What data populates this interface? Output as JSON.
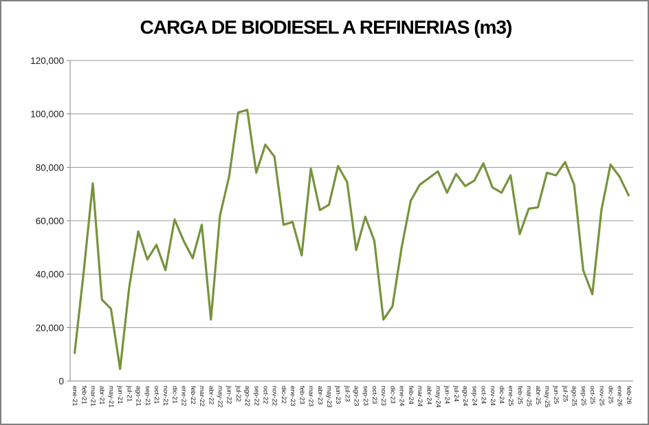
{
  "title": "CARGA DE BIODIESEL A REFINERIAS (m3)",
  "colors": {
    "series_line": "#77933C",
    "gridline": "#969696",
    "axis": "#808080",
    "chart_border": "#7F7F7F",
    "title_text": "#000000",
    "tick_label_text": "#1a1a1a",
    "background": "#FFFFFF"
  },
  "y_axis": {
    "tick_labels": [
      "120,000",
      "100,000",
      "80,000",
      "60,000",
      "40,000",
      "20,000",
      "0"
    ],
    "tick_values": [
      120000,
      100000,
      80000,
      60000,
      40000,
      20000,
      0
    ]
  },
  "chart_data": {
    "type": "line",
    "title": "CARGA DE BIODIESEL A REFINERIAS (m3)",
    "xlabel": "",
    "ylabel": "",
    "ylim": [
      0,
      120000
    ],
    "y_gridline_step": 20000,
    "grid": "horizontal",
    "legend": "none",
    "x_label_rotation_deg": 90,
    "categories": [
      "ene-21",
      "feb-21",
      "mar-21",
      "abr-21",
      "may-21",
      "jun-21",
      "jul-21",
      "ago-21",
      "sep-21",
      "oct-21",
      "nov-21",
      "dic-21",
      "ene-22",
      "feb-22",
      "mar-22",
      "abr-22",
      "may-22",
      "jun-22",
      "jul-22",
      "ago-22",
      "sep-22",
      "oct-22",
      "nov-22",
      "dic-22",
      "ene-23",
      "feb-23",
      "mar-23",
      "abr-23",
      "may-23",
      "jun-23",
      "jul-23",
      "ago-23",
      "sep-23",
      "oct-23",
      "nov-23",
      "dic-23",
      "ene-24",
      "feb-24",
      "mar-24",
      "abr-24",
      "may-24",
      "jun-24",
      "jul-24",
      "ago-24",
      "sep-24",
      "oct-24",
      "nov-24",
      "dic-24",
      "ene-25",
      "feb-25",
      "mar-25",
      "abr-25",
      "may-25",
      "jun-25",
      "jul-25",
      "ago-25",
      "sep-25",
      "oct-25",
      "nov-25",
      "dic-25",
      "ene-26",
      "feb-26"
    ],
    "series": [
      {
        "name": "Carga de biodiesel a refinerias (m3)",
        "color": "#77933C",
        "values": [
          10500,
          41000,
          74000,
          30500,
          27000,
          4500,
          35000,
          56000,
          45500,
          51000,
          41500,
          60500,
          52500,
          46000,
          58500,
          23000,
          62000,
          76500,
          100500,
          101500,
          78000,
          88500,
          84000,
          58500,
          59500,
          47000,
          79500,
          64000,
          66000,
          80500,
          74500,
          49000,
          61500,
          52500,
          23000,
          28000,
          50000,
          67500,
          73500,
          76000,
          78500,
          70500,
          77500,
          73000,
          75000,
          81500,
          72500,
          70500,
          77000,
          55000,
          64500,
          65000,
          78000,
          77000,
          82000,
          73500,
          41500,
          32500,
          64000,
          81000,
          76500,
          69500
        ]
      }
    ]
  }
}
